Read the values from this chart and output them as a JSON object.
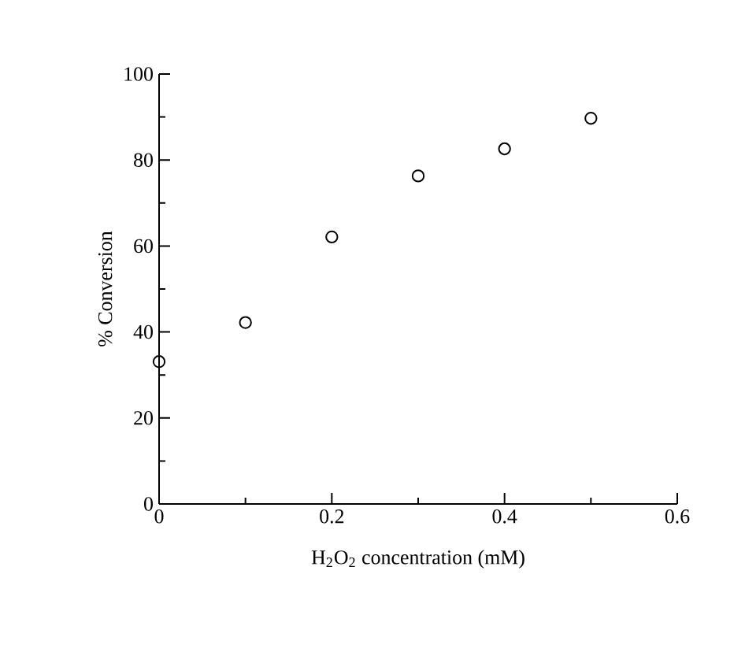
{
  "chart_data": {
    "type": "scatter",
    "x": [
      0,
      0.1,
      0.2,
      0.3,
      0.4,
      0.5
    ],
    "values": [
      33.1,
      42.2,
      62.1,
      76.3,
      82.6,
      89.7
    ],
    "color": "#000000",
    "marker": "circle",
    "xlim": [
      0,
      0.6
    ],
    "ylim": [
      0,
      100
    ],
    "xticks": [
      0,
      0.2,
      0.4,
      0.6
    ],
    "yticks": [
      0,
      20,
      40,
      60,
      80,
      100
    ],
    "xlabel": "H$_{2}$O$_{2}$ concentration (mM)",
    "ylabel": "% Conversion"
  }
}
